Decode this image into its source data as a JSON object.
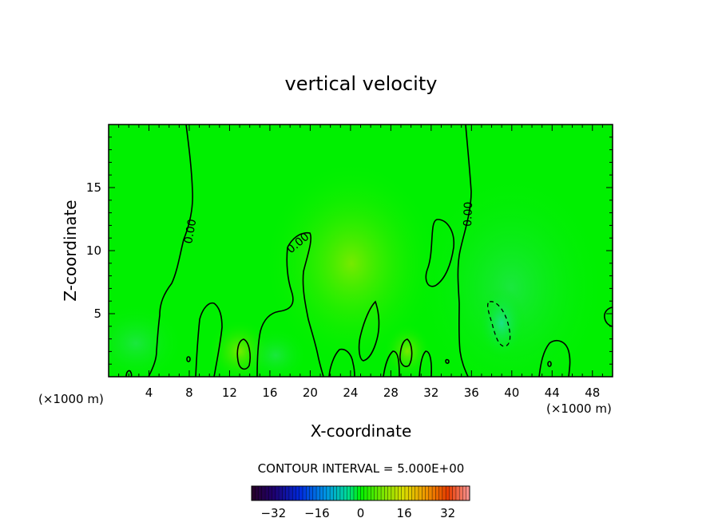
{
  "chart_data": {
    "type": "contour",
    "title": "vertical velocity",
    "xlabel": "X-coordinate",
    "ylabel": "Z-coordinate",
    "x_unit_left": "(×1000 m)",
    "x_unit_right": "(×1000 m)",
    "xlim": [
      0,
      50
    ],
    "ylim": [
      0,
      20
    ],
    "x_ticks": [
      "4",
      "8",
      "12",
      "16",
      "20",
      "24",
      "28",
      "32",
      "36",
      "40",
      "44",
      "48"
    ],
    "y_ticks": [
      "5",
      "10",
      "15"
    ],
    "contour_interval_text": "CONTOUR INTERVAL = 5.000E+00",
    "contour_interval": 5.0,
    "zero_contour_label": "0.00",
    "colorbar": {
      "range": [
        -40,
        40
      ],
      "ticks": [
        "−32",
        "−16",
        "0",
        "16",
        "32"
      ]
    },
    "background_color": "#00f000",
    "updraft_regions": [
      {
        "x_center": 26,
        "z_center": 8,
        "note": "warm (yellow-green) shading"
      }
    ],
    "downdraft_regions": [
      {
        "x_center": 40,
        "z_center": 7,
        "note": "cool (cyan-green) shading, dashed negative contour"
      }
    ]
  }
}
